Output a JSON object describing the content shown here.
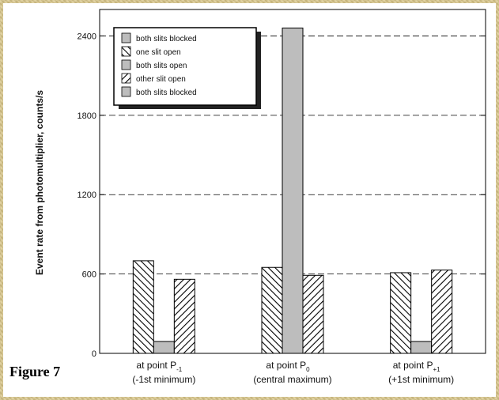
{
  "figure_label": "Figure 7",
  "chart_data": {
    "type": "bar",
    "ylabel": "Event rate from photomultiplier, counts/s",
    "xlabel": "",
    "ylim": [
      0,
      2600
    ],
    "yticks": [
      0,
      600,
      1200,
      1800,
      2400
    ],
    "grid": "horizontal dashed",
    "legend_position": "top-left",
    "categories": [
      {
        "line1": "at point P",
        "sub": "-1",
        "line2": "(-1st minimum)"
      },
      {
        "line1": "at point P",
        "sub": "0",
        "line2": "(central maximum)"
      },
      {
        "line1": "at point P",
        "sub": "+1",
        "line2": "(+1st minimum)"
      }
    ],
    "series": [
      {
        "name": "both slits blocked",
        "pattern": "solid-gray",
        "values": [
          0,
          0,
          0
        ]
      },
      {
        "name": "one slit open",
        "pattern": "hatch-back",
        "values": [
          700,
          650,
          610
        ]
      },
      {
        "name": "both slits open",
        "pattern": "solid-gray",
        "values": [
          90,
          2460,
          90
        ]
      },
      {
        "name": "other slit open",
        "pattern": "hatch-fwd",
        "values": [
          560,
          590,
          630
        ]
      },
      {
        "name": "both slits blocked",
        "pattern": "solid-gray",
        "values": [
          0,
          0,
          0
        ]
      }
    ]
  }
}
